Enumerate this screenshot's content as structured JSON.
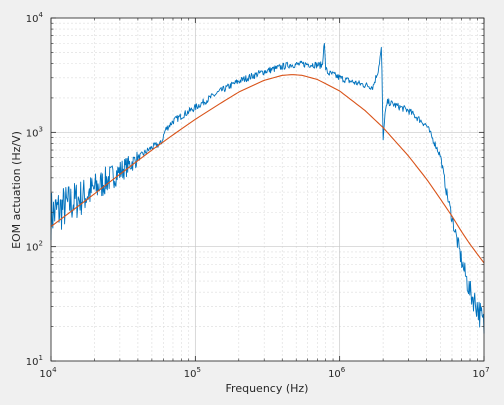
{
  "chart_data": {
    "type": "line",
    "title": "",
    "xlabel": "Frequency (Hz)",
    "ylabel": "EOM actuation (Hz/V)",
    "xscale": "log",
    "yscale": "log",
    "xlim": [
      10000,
      10000000
    ],
    "ylim": [
      10,
      10000
    ],
    "grid": true,
    "minor_grid": true,
    "x_ticks": [
      {
        "base": "10",
        "exp": "4"
      },
      {
        "base": "10",
        "exp": "5"
      },
      {
        "base": "10",
        "exp": "6"
      },
      {
        "base": "10",
        "exp": "7"
      }
    ],
    "y_ticks": [
      {
        "base": "10",
        "exp": "1"
      },
      {
        "base": "10",
        "exp": "2"
      },
      {
        "base": "10",
        "exp": "3"
      },
      {
        "base": "10",
        "exp": "4"
      }
    ],
    "series": [
      {
        "color": "#0072bd",
        "style": "noisy",
        "x": [
          10000,
          13000,
          18000,
          25000,
          35000,
          50000,
          58000,
          62000,
          70000,
          100000,
          150000,
          200000,
          300000,
          450000,
          600000,
          760000,
          780000,
          800000,
          830000,
          900000,
          1000000,
          1300000,
          1700000,
          1850000,
          1950000,
          2000000,
          2050000,
          2150000,
          2500000,
          3000000,
          4000000,
          5000000,
          5500000,
          6000000,
          7000000,
          8000000,
          9000000,
          10000000
        ],
        "y": [
          190,
          230,
          290,
          390,
          520,
          740,
          800,
          1050,
          1250,
          1650,
          2300,
          2800,
          3400,
          3900,
          3950,
          3850,
          6500,
          3600,
          3300,
          3200,
          3000,
          2700,
          2500,
          3500,
          5500,
          800,
          1400,
          1850,
          1700,
          1550,
          1150,
          620,
          300,
          180,
          75,
          40,
          30,
          20
        ]
      },
      {
        "color": "#d95319",
        "style": "smooth",
        "x": [
          10000,
          15000,
          20000,
          30000,
          50000,
          70000,
          100000,
          150000,
          200000,
          300000,
          400000,
          470000,
          550000,
          700000,
          1000000,
          1500000,
          2000000,
          3000000,
          4000000,
          5000000,
          6000000,
          7000000,
          8000000,
          10000000
        ],
        "y": [
          150,
          220,
          290,
          430,
          700,
          950,
          1300,
          1800,
          2250,
          2850,
          3150,
          3200,
          3150,
          2900,
          2300,
          1550,
          1100,
          620,
          390,
          260,
          185,
          135,
          105,
          72
        ]
      }
    ]
  }
}
